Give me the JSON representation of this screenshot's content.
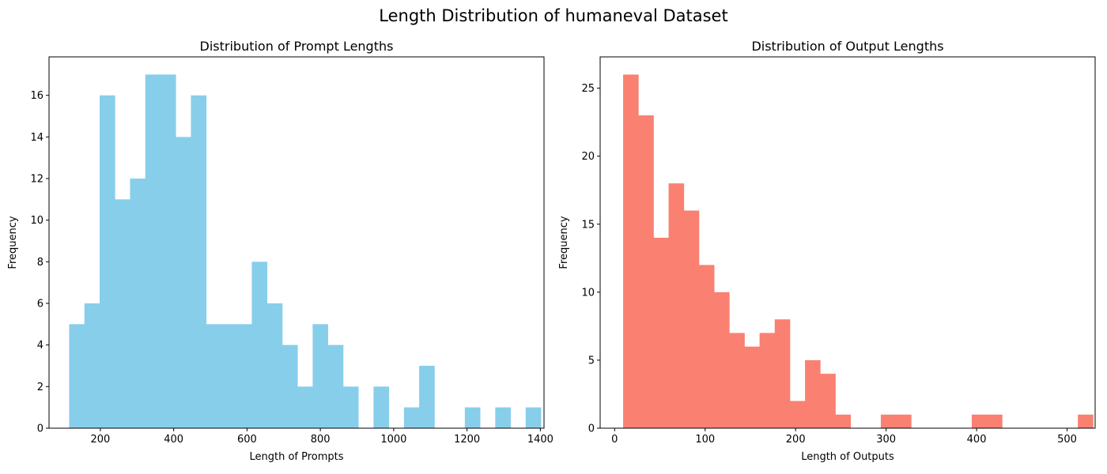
{
  "figure": {
    "suptitle": "Length Distribution of humaneval Dataset"
  },
  "chart_data": [
    {
      "type": "bar",
      "subtype": "histogram",
      "title": "Distribution of Prompt Lengths",
      "xlabel": "Length of Prompts",
      "ylabel": "Frequency",
      "color": "#87ceeb",
      "xlim": [
        60,
        1410
      ],
      "ylim": [
        0,
        17.85
      ],
      "xticks": [
        200,
        400,
        600,
        800,
        1000,
        1200,
        1400
      ],
      "yticks": [
        0,
        2,
        4,
        6,
        8,
        10,
        12,
        14,
        16
      ],
      "bin_start": 115,
      "bin_width": 41.5,
      "values": [
        5,
        6,
        16,
        11,
        12,
        17,
        17,
        14,
        16,
        5,
        5,
        5,
        8,
        6,
        4,
        2,
        5,
        4,
        2,
        0,
        2,
        0,
        1,
        3,
        0,
        0,
        1,
        0,
        1,
        0,
        1
      ],
      "grid": false
    },
    {
      "type": "bar",
      "subtype": "histogram",
      "title": "Distribution of Output Lengths",
      "xlabel": "Length of Outputs",
      "ylabel": "Frequency",
      "color": "#fa8072",
      "xlim": [
        -16,
        531
      ],
      "ylim": [
        0,
        27.3
      ],
      "xticks": [
        0,
        100,
        200,
        300,
        400,
        500
      ],
      "yticks": [
        0,
        5,
        10,
        15,
        20,
        25
      ],
      "bin_start": 9.4,
      "bin_width": 16.75,
      "values": [
        26,
        23,
        14,
        18,
        16,
        12,
        10,
        7,
        6,
        7,
        8,
        2,
        5,
        4,
        1,
        0,
        0,
        1,
        1,
        0,
        0,
        0,
        0,
        1,
        1,
        0,
        0,
        0,
        0,
        0,
        1
      ],
      "grid": false
    }
  ]
}
